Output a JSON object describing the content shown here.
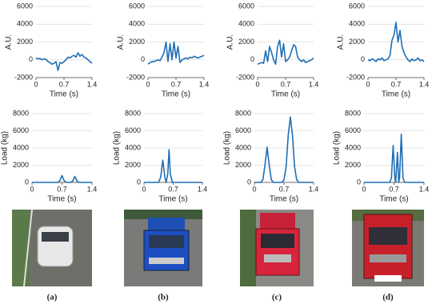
{
  "chart_data": [
    {
      "type": "line",
      "ylabel": "A.U.",
      "xlabel": "Time (s)",
      "color": "#1f6fb5",
      "grid": true,
      "x": [
        0,
        0.05,
        0.1,
        0.15,
        0.2,
        0.25,
        0.3,
        0.35,
        0.4,
        0.45,
        0.5,
        0.55,
        0.6,
        0.65,
        0.7,
        0.75,
        0.8,
        0.85,
        0.9,
        0.95,
        1.0,
        1.05,
        1.1,
        1.15,
        1.2,
        1.25,
        1.3,
        1.35,
        1.4
      ],
      "values": [
        200,
        100,
        150,
        0,
        100,
        50,
        -200,
        -300,
        -500,
        -400,
        -200,
        -1200,
        -300,
        -400,
        -200,
        0,
        300,
        200,
        400,
        500,
        300,
        800,
        400,
        600,
        300,
        200,
        0,
        -200,
        -400
      ],
      "xlim": [
        0,
        1.4
      ],
      "xticks": [
        0,
        0.7,
        1.4
      ],
      "ylim": [
        -2000,
        6000
      ],
      "yticks": [
        -2000,
        0,
        2000,
        4000,
        6000
      ]
    },
    {
      "type": "line",
      "ylabel": "A.U.",
      "xlabel": "Time (s)",
      "color": "#1f6fb5",
      "grid": true,
      "x": [
        0,
        0.05,
        0.1,
        0.15,
        0.2,
        0.25,
        0.3,
        0.35,
        0.4,
        0.45,
        0.5,
        0.55,
        0.6,
        0.65,
        0.7,
        0.75,
        0.8,
        0.85,
        0.9,
        0.95,
        1.0,
        1.05,
        1.1,
        1.15,
        1.2,
        1.25,
        1.3,
        1.35,
        1.4
      ],
      "values": [
        -500,
        -300,
        -200,
        -200,
        -100,
        0,
        -100,
        300,
        800,
        2000,
        -200,
        1800,
        0,
        2000,
        200,
        1500,
        -300,
        0,
        100,
        200,
        100,
        300,
        200,
        400,
        300,
        200,
        300,
        400,
        500
      ],
      "xlim": [
        0,
        1.4
      ],
      "xticks": [
        0,
        0.7,
        1.4
      ],
      "ylim": [
        -2000,
        6000
      ],
      "yticks": [
        -2000,
        0,
        2000,
        4000,
        6000
      ]
    },
    {
      "type": "line",
      "ylabel": "A.U.",
      "xlabel": "Time (s)",
      "color": "#1f6fb5",
      "grid": true,
      "x": [
        0,
        0.05,
        0.1,
        0.15,
        0.2,
        0.25,
        0.3,
        0.35,
        0.4,
        0.45,
        0.5,
        0.55,
        0.6,
        0.65,
        0.7,
        0.75,
        0.8,
        0.85,
        0.9,
        0.95,
        1.0,
        1.05,
        1.1,
        1.15,
        1.2,
        1.25,
        1.3,
        1.35,
        1.4
      ],
      "values": [
        -500,
        -400,
        -300,
        -400,
        1000,
        -200,
        1500,
        800,
        0,
        -500,
        1500,
        2200,
        300,
        1800,
        -200,
        0,
        300,
        1000,
        1700,
        1500,
        300,
        0,
        -200,
        0,
        -300,
        -200,
        -100,
        0,
        200
      ],
      "xlim": [
        0,
        1.4
      ],
      "xticks": [
        0,
        0.7,
        1.4
      ],
      "ylim": [
        -2000,
        6000
      ],
      "yticks": [
        -2000,
        0,
        2000,
        4000,
        6000
      ]
    },
    {
      "type": "line",
      "ylabel": "A.U.",
      "xlabel": "Time (s)",
      "color": "#1f6fb5",
      "grid": true,
      "x": [
        0,
        0.05,
        0.1,
        0.15,
        0.2,
        0.25,
        0.3,
        0.35,
        0.4,
        0.45,
        0.5,
        0.55,
        0.6,
        0.65,
        0.7,
        0.75,
        0.8,
        0.85,
        0.9,
        0.95,
        1.0,
        1.05,
        1.1,
        1.15,
        1.2,
        1.25,
        1.3,
        1.35,
        1.4
      ],
      "values": [
        0,
        -100,
        100,
        0,
        -200,
        100,
        0,
        200,
        -100,
        0,
        100,
        500,
        2200,
        2800,
        4200,
        2000,
        3300,
        1500,
        800,
        300,
        0,
        -200,
        100,
        -100,
        0,
        200,
        -100,
        0,
        -200
      ],
      "xlim": [
        0,
        1.4
      ],
      "xticks": [
        0,
        0.7,
        1.4
      ],
      "ylim": [
        -2000,
        6000
      ],
      "yticks": [
        -2000,
        0,
        2000,
        4000,
        6000
      ]
    },
    {
      "type": "line",
      "ylabel": "Load (kg)",
      "xlabel": "Time (s)",
      "color": "#1f6fb5",
      "grid": true,
      "x": [
        0,
        0.6,
        0.65,
        0.7,
        0.75,
        0.8,
        0.9,
        0.95,
        1.0,
        1.05,
        1.1,
        1.4
      ],
      "values": [
        0,
        0,
        200,
        800,
        200,
        0,
        0,
        150,
        700,
        150,
        0,
        0
      ],
      "xlim": [
        0,
        1.4
      ],
      "xticks": [
        0,
        0.7,
        1.4
      ],
      "ylim": [
        0,
        8000
      ],
      "yticks": [
        0,
        2000,
        4000,
        6000,
        8000
      ]
    },
    {
      "type": "line",
      "ylabel": "Load (kg)",
      "xlabel": "Time (s)",
      "color": "#1f6fb5",
      "grid": true,
      "x": [
        0,
        0.35,
        0.4,
        0.45,
        0.5,
        0.53,
        0.57,
        0.6,
        0.63,
        0.68,
        1.4
      ],
      "values": [
        0,
        0,
        600,
        2600,
        600,
        0,
        1000,
        3800,
        1000,
        0,
        0
      ],
      "xlim": [
        0,
        1.4
      ],
      "xticks": [
        0,
        0.7,
        1.4
      ],
      "ylim": [
        0,
        8000
      ],
      "yticks": [
        0,
        2000,
        4000,
        6000,
        8000
      ]
    },
    {
      "type": "line",
      "ylabel": "Load (kg)",
      "xlabel": "Time (s)",
      "color": "#1f6fb5",
      "grid": true,
      "x": [
        0,
        0.15,
        0.2,
        0.25,
        0.3,
        0.35,
        0.4,
        0.45,
        0.65,
        0.7,
        0.75,
        0.8,
        0.85,
        0.9,
        0.95,
        1.0,
        1.05,
        1.4
      ],
      "values": [
        0,
        0,
        300,
        2000,
        4100,
        2000,
        300,
        0,
        0,
        300,
        1800,
        5500,
        7600,
        5500,
        1800,
        300,
        0,
        0
      ],
      "xlim": [
        0,
        1.4
      ],
      "xticks": [
        0,
        0.7,
        1.4
      ],
      "ylim": [
        0,
        8000
      ],
      "yticks": [
        0,
        2000,
        4000,
        6000,
        8000
      ]
    },
    {
      "type": "line",
      "ylabel": "Load (kg)",
      "xlabel": "Time (s)",
      "color": "#1f6fb5",
      "grid": true,
      "x": [
        0,
        0.6,
        0.64,
        0.68,
        0.72,
        0.74,
        0.78,
        0.81,
        0.83,
        0.87,
        0.91,
        0.95,
        1.4
      ],
      "values": [
        0,
        0,
        500,
        4300,
        500,
        0,
        3500,
        0,
        500,
        5600,
        500,
        0,
        0
      ],
      "xlim": [
        0,
        1.4
      ],
      "xticks": [
        0,
        0.7,
        1.4
      ],
      "ylim": [
        0,
        8000
      ],
      "yticks": [
        0,
        2000,
        4000,
        6000,
        8000
      ]
    }
  ],
  "panel_labels": [
    "(a)",
    "(b)",
    "(c)",
    "(d)"
  ]
}
